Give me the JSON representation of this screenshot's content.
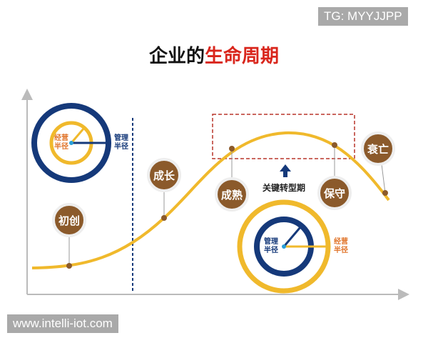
{
  "watermark_top": "TG: MYYJJPP",
  "watermark_bottom": "www.intelli-iot.com",
  "title": {
    "part1": "企业的",
    "part2": "生命周期"
  },
  "stages": {
    "start": "初创",
    "growth": "成长",
    "mature": "成熟",
    "conservative": "保守",
    "decline": "衰亡"
  },
  "transition_label": "关键转型期",
  "left_circle": {
    "inner": "经营半径",
    "outer": "管理半径"
  },
  "right_circle": {
    "inner": "管理半径",
    "outer": "经营半径"
  },
  "colors": {
    "navy": "#15397a",
    "yellow": "#f0b92c",
    "brown": "#8b5a2b",
    "red": "#d9261c",
    "orange": "#e0742a"
  }
}
